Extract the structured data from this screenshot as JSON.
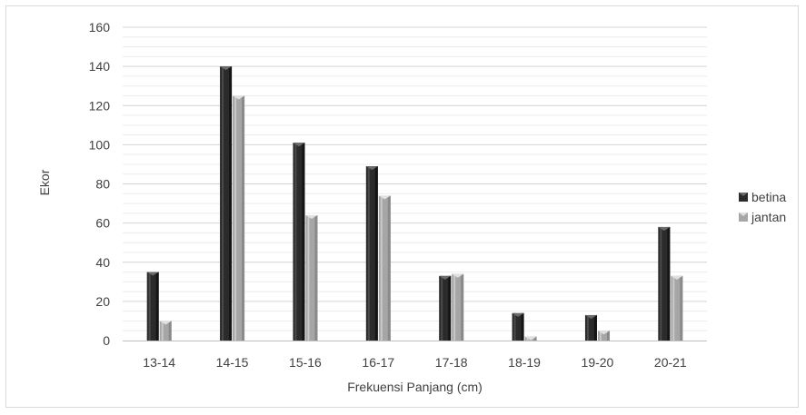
{
  "chart_data": {
    "type": "bar",
    "title": "",
    "xlabel": "Frekuensi Panjang (cm)",
    "ylabel": "Ekor",
    "categories": [
      "13-14",
      "14-15",
      "15-16",
      "16-17",
      "17-18",
      "18-19",
      "19-20",
      "20-21"
    ],
    "series": [
      {
        "name": "betina",
        "values": [
          35,
          140,
          101,
          89,
          33,
          14,
          13,
          58
        ],
        "color": "#2b2b2b"
      },
      {
        "name": "jantan",
        "values": [
          10,
          125,
          64,
          74,
          34,
          2,
          5,
          33
        ],
        "color": "#a6a6a6"
      }
    ],
    "ylim": [
      0,
      160
    ],
    "yticks": [
      0,
      20,
      40,
      60,
      80,
      100,
      120,
      140,
      160
    ],
    "grid": true,
    "legend": "right"
  }
}
